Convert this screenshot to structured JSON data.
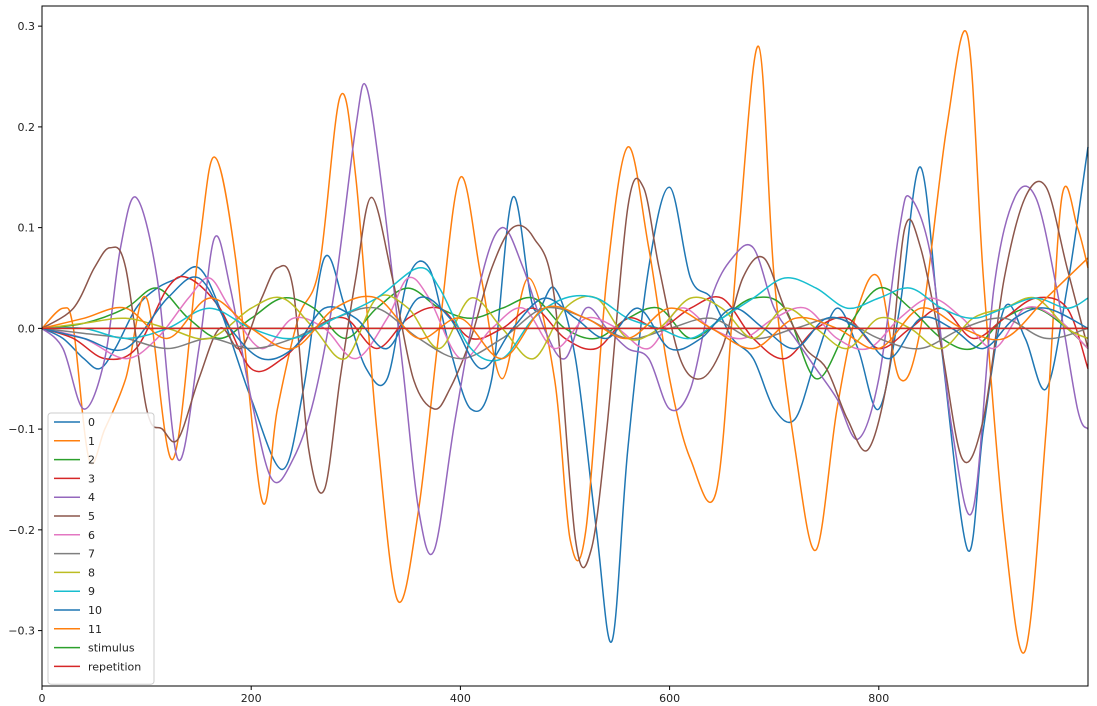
{
  "chart_data": {
    "type": "line",
    "title": "",
    "xlabel": "",
    "ylabel": "",
    "xlim": [
      0,
      1000
    ],
    "ylim": [
      -0.355,
      0.32
    ],
    "grid": false,
    "legend_position": "lower-left",
    "x_ticks": [
      {
        "value": 0,
        "label": "0"
      },
      {
        "value": 200,
        "label": "200"
      },
      {
        "value": 400,
        "label": "400"
      },
      {
        "value": 600,
        "label": "600"
      },
      {
        "value": 800,
        "label": "800"
      }
    ],
    "y_ticks": [
      {
        "value": 0.3,
        "label": "0.3"
      },
      {
        "value": 0.2,
        "label": "0.2"
      },
      {
        "value": 0.1,
        "label": "0.1"
      },
      {
        "value": 0.0,
        "label": "0.0"
      },
      {
        "value": -0.1,
        "label": "−0.1"
      },
      {
        "value": -0.2,
        "label": "−0.2"
      },
      {
        "value": -0.3,
        "label": "−0.3"
      }
    ],
    "series": [
      {
        "name": "0",
        "color": "#1f77b4",
        "x": [
          0,
          20,
          40,
          55,
          70,
          90,
          110,
          130,
          150,
          170,
          200,
          230,
          250,
          270,
          290,
          310,
          330,
          350,
          370,
          390,
          410,
          430,
          450,
          470,
          490,
          510,
          530,
          545,
          560,
          580,
          600,
          620,
          640,
          660,
          680,
          700,
          720,
          740,
          760,
          780,
          800,
          820,
          840,
          860,
          885,
          900,
          920,
          940,
          960,
          980,
          1000
        ],
        "y": [
          0,
          -0.01,
          -0.03,
          -0.04,
          -0.02,
          0.02,
          0.04,
          0.05,
          0.06,
          0.02,
          -0.07,
          -0.14,
          -0.06,
          0.07,
          0.02,
          -0.04,
          -0.05,
          0.05,
          0.06,
          -0.02,
          -0.08,
          -0.05,
          0.13,
          0.02,
          0.04,
          -0.03,
          -0.2,
          -0.31,
          -0.12,
          0.06,
          0.14,
          0.05,
          0.03,
          -0.01,
          -0.03,
          -0.08,
          -0.09,
          -0.03,
          0.02,
          -0.02,
          -0.08,
          0.02,
          0.16,
          -0.02,
          -0.22,
          -0.1,
          0.02,
          -0.01,
          -0.06,
          0.04,
          0.18
        ]
      },
      {
        "name": "1",
        "color": "#ff7f0e",
        "x": [
          0,
          20,
          30,
          45,
          60,
          80,
          100,
          125,
          150,
          165,
          185,
          210,
          225,
          245,
          265,
          285,
          300,
          320,
          340,
          360,
          380,
          400,
          420,
          440,
          465,
          490,
          505,
          520,
          540,
          560,
          580,
          600,
          620,
          645,
          665,
          685,
          700,
          720,
          740,
          760,
          780,
          800,
          820,
          840,
          865,
          885,
          900,
          920,
          940,
          960,
          975,
          990,
          1000
        ],
        "y": [
          0,
          0.02,
          0.0,
          -0.13,
          -0.1,
          -0.05,
          0.03,
          -0.13,
          0.08,
          0.17,
          0.07,
          -0.17,
          -0.08,
          0.01,
          0.06,
          0.23,
          0.15,
          -0.1,
          -0.27,
          -0.18,
          0.0,
          0.15,
          0.05,
          -0.05,
          0.05,
          -0.05,
          -0.21,
          -0.2,
          0.05,
          0.18,
          0.08,
          -0.05,
          -0.13,
          -0.16,
          0.08,
          0.28,
          0.05,
          -0.12,
          -0.22,
          -0.08,
          0.02,
          0.05,
          -0.05,
          0.0,
          0.2,
          0.29,
          0.05,
          -0.2,
          -0.32,
          -0.1,
          0.13,
          0.1,
          0.06
        ]
      },
      {
        "name": "2",
        "color": "#2ca02c",
        "x": [
          0,
          40,
          80,
          110,
          140,
          170,
          200,
          230,
          260,
          290,
          320,
          350,
          380,
          410,
          440,
          470,
          500,
          530,
          560,
          590,
          620,
          650,
          680,
          710,
          740,
          770,
          800,
          830,
          860,
          890,
          920,
          950,
          980,
          1000
        ],
        "y": [
          0,
          0.005,
          0.02,
          0.04,
          0.01,
          -0.01,
          0.01,
          0.03,
          0.02,
          -0.01,
          0.02,
          0.04,
          0.02,
          0.01,
          0.02,
          0.03,
          0.0,
          -0.01,
          0.01,
          0.02,
          -0.01,
          0.01,
          0.03,
          0.02,
          -0.05,
          0.0,
          0.04,
          0.02,
          -0.01,
          -0.02,
          0.01,
          0.02,
          0.0,
          -0.02
        ]
      },
      {
        "name": "3",
        "color": "#d62728",
        "x": [
          0,
          30,
          60,
          90,
          120,
          140,
          170,
          200,
          230,
          260,
          290,
          320,
          350,
          380,
          410,
          440,
          470,
          500,
          530,
          560,
          590,
          620,
          650,
          680,
          710,
          740,
          770,
          800,
          830,
          860,
          890,
          920,
          950,
          980,
          1000
        ],
        "y": [
          0,
          -0.01,
          -0.03,
          -0.02,
          0.04,
          0.05,
          0.02,
          -0.04,
          -0.03,
          0.0,
          0.01,
          -0.02,
          0.01,
          0.02,
          -0.01,
          0.0,
          0.02,
          -0.01,
          -0.02,
          0.01,
          0.0,
          0.02,
          0.03,
          -0.01,
          -0.03,
          0.0,
          0.01,
          -0.02,
          0.0,
          0.02,
          -0.01,
          0.01,
          0.03,
          0.02,
          -0.04
        ]
      },
      {
        "name": "4",
        "color": "#9467bd",
        "x": [
          0,
          20,
          40,
          60,
          75,
          90,
          110,
          130,
          150,
          165,
          180,
          200,
          220,
          240,
          260,
          280,
          300,
          310,
          325,
          345,
          360,
          375,
          395,
          420,
          440,
          460,
          480,
          500,
          520,
          540,
          560,
          580,
          600,
          620,
          640,
          660,
          680,
          700,
          720,
          740,
          760,
          780,
          800,
          820,
          830,
          850,
          870,
          890,
          910,
          930,
          950,
          970,
          990,
          1000
        ],
        "y": [
          0,
          -0.02,
          -0.08,
          -0.03,
          0.08,
          0.13,
          0.05,
          -0.13,
          -0.02,
          0.09,
          0.04,
          -0.07,
          -0.15,
          -0.13,
          -0.07,
          0.04,
          0.2,
          0.24,
          0.14,
          -0.04,
          -0.18,
          -0.22,
          -0.09,
          0.05,
          0.1,
          0.06,
          0.0,
          -0.03,
          0.02,
          0.0,
          -0.02,
          -0.03,
          -0.08,
          -0.06,
          0.03,
          0.07,
          0.08,
          0.02,
          -0.01,
          -0.04,
          -0.07,
          -0.11,
          -0.05,
          0.1,
          0.13,
          0.07,
          -0.1,
          -0.18,
          0.04,
          0.13,
          0.13,
          0.04,
          -0.08,
          -0.1
        ]
      },
      {
        "name": "5",
        "color": "#8c564b",
        "x": [
          0,
          30,
          50,
          65,
          80,
          100,
          115,
          130,
          150,
          170,
          190,
          210,
          225,
          240,
          255,
          270,
          285,
          300,
          315,
          335,
          355,
          375,
          390,
          410,
          430,
          450,
          470,
          490,
          510,
          525,
          540,
          560,
          575,
          590,
          610,
          630,
          650,
          670,
          690,
          710,
          730,
          750,
          770,
          790,
          810,
          825,
          840,
          860,
          880,
          900,
          920,
          940,
          960,
          980,
          1000
        ],
        "y": [
          0,
          0.02,
          0.06,
          0.08,
          0.06,
          -0.08,
          -0.1,
          -0.11,
          -0.05,
          0.0,
          -0.02,
          0.03,
          0.06,
          0.04,
          -0.12,
          -0.16,
          -0.05,
          0.05,
          0.13,
          0.05,
          -0.05,
          -0.08,
          -0.06,
          -0.01,
          0.06,
          0.1,
          0.09,
          0.03,
          -0.21,
          -0.22,
          -0.1,
          0.12,
          0.14,
          0.06,
          -0.03,
          -0.05,
          -0.02,
          0.05,
          0.07,
          0.02,
          -0.02,
          -0.04,
          -0.09,
          -0.12,
          -0.04,
          0.1,
          0.08,
          -0.02,
          -0.13,
          -0.09,
          0.05,
          0.13,
          0.14,
          0.06,
          -0.02
        ]
      },
      {
        "name": "6",
        "color": "#e377c2",
        "x": [
          0,
          40,
          80,
          110,
          140,
          160,
          180,
          210,
          240,
          270,
          300,
          330,
          350,
          370,
          400,
          430,
          460,
          490,
          520,
          550,
          580,
          610,
          640,
          670,
          700,
          730,
          760,
          790,
          820,
          850,
          880,
          910,
          940,
          970,
          1000
        ],
        "y": [
          0,
          -0.01,
          -0.03,
          -0.01,
          0.03,
          0.05,
          0.02,
          -0.02,
          0.01,
          0.0,
          -0.03,
          0.01,
          0.05,
          0.03,
          -0.03,
          0.0,
          0.02,
          -0.02,
          0.01,
          0.0,
          -0.02,
          0.02,
          0.0,
          -0.01,
          0.01,
          0.02,
          -0.01,
          -0.02,
          0.01,
          0.03,
          0.01,
          -0.02,
          0.02,
          0.01,
          -0.02
        ]
      },
      {
        "name": "7",
        "color": "#7f7f7f",
        "x": [
          0,
          40,
          80,
          120,
          160,
          200,
          240,
          280,
          320,
          360,
          400,
          440,
          480,
          520,
          560,
          600,
          640,
          680,
          720,
          760,
          800,
          840,
          880,
          920,
          960,
          1000
        ],
        "y": [
          0,
          -0.005,
          -0.01,
          -0.02,
          -0.01,
          -0.02,
          -0.01,
          0.01,
          0.02,
          -0.01,
          -0.03,
          -0.01,
          0.02,
          0.01,
          -0.01,
          0.0,
          0.01,
          -0.01,
          0.0,
          0.01,
          -0.01,
          -0.02,
          0.0,
          0.01,
          -0.01,
          0.0
        ]
      },
      {
        "name": "8",
        "color": "#bcbd22",
        "x": [
          0,
          40,
          80,
          120,
          160,
          200,
          230,
          260,
          290,
          320,
          350,
          380,
          410,
          440,
          470,
          500,
          530,
          560,
          590,
          620,
          650,
          680,
          710,
          740,
          770,
          800,
          830,
          860,
          890,
          920,
          950,
          980,
          1000
        ],
        "y": [
          0,
          0.005,
          0.01,
          0.0,
          -0.01,
          0.02,
          0.03,
          0.0,
          -0.03,
          0.03,
          0.02,
          -0.02,
          0.03,
          0.0,
          -0.03,
          0.02,
          0.03,
          -0.01,
          0.0,
          0.03,
          0.02,
          -0.01,
          0.02,
          0.0,
          -0.02,
          0.01,
          0.0,
          -0.02,
          0.01,
          0.02,
          0.03,
          0.0,
          -0.01
        ]
      },
      {
        "name": "9",
        "color": "#17becf",
        "x": [
          0,
          40,
          80,
          120,
          160,
          200,
          240,
          280,
          320,
          360,
          380,
          410,
          440,
          470,
          500,
          530,
          560,
          590,
          620,
          650,
          680,
          710,
          740,
          770,
          800,
          830,
          860,
          890,
          920,
          950,
          980,
          1000
        ],
        "y": [
          0,
          0.0,
          -0.01,
          0.0,
          0.02,
          0.0,
          -0.01,
          0.01,
          0.03,
          0.06,
          0.04,
          -0.02,
          -0.03,
          0.01,
          0.03,
          0.03,
          0.01,
          0.0,
          -0.01,
          0.01,
          0.03,
          0.05,
          0.04,
          0.02,
          0.03,
          0.04,
          0.02,
          0.01,
          0.02,
          0.03,
          0.02,
          0.03
        ]
      },
      {
        "name": "10",
        "color": "#1f77b4",
        "x": [
          0,
          40,
          80,
          120,
          150,
          180,
          210,
          240,
          270,
          300,
          330,
          360,
          390,
          420,
          450,
          480,
          510,
          540,
          570,
          600,
          630,
          660,
          690,
          720,
          750,
          780,
          810,
          840,
          870,
          900,
          930,
          960,
          1000
        ],
        "y": [
          0,
          -0.01,
          -0.02,
          0.03,
          0.05,
          0.0,
          -0.03,
          -0.02,
          0.02,
          0.01,
          -0.02,
          0.03,
          0.01,
          -0.04,
          0.0,
          0.03,
          0.01,
          -0.01,
          0.02,
          -0.02,
          -0.01,
          0.02,
          0.0,
          -0.02,
          0.01,
          0.0,
          -0.03,
          0.01,
          0.0,
          -0.02,
          0.01,
          0.02,
          0.0
        ]
      },
      {
        "name": "11",
        "color": "#ff7f0e",
        "x": [
          0,
          40,
          80,
          120,
          160,
          200,
          240,
          280,
          320,
          360,
          400,
          440,
          480,
          520,
          560,
          600,
          640,
          680,
          720,
          760,
          800,
          840,
          880,
          920,
          960,
          1000
        ],
        "y": [
          0,
          0.01,
          0.02,
          -0.01,
          0.03,
          0.0,
          -0.02,
          0.02,
          0.03,
          -0.01,
          0.01,
          -0.03,
          0.02,
          0.01,
          -0.01,
          0.02,
          0.0,
          -0.02,
          0.01,
          0.0,
          -0.02,
          0.02,
          0.0,
          -0.01,
          0.03,
          0.07
        ]
      },
      {
        "name": "stimulus",
        "color": "#2ca02c",
        "x": [
          0,
          1000
        ],
        "y": [
          0.0,
          0.0
        ]
      },
      {
        "name": "repetition",
        "color": "#d62728",
        "x": [
          0,
          1000
        ],
        "y": [
          0.0,
          0.0
        ]
      }
    ]
  }
}
